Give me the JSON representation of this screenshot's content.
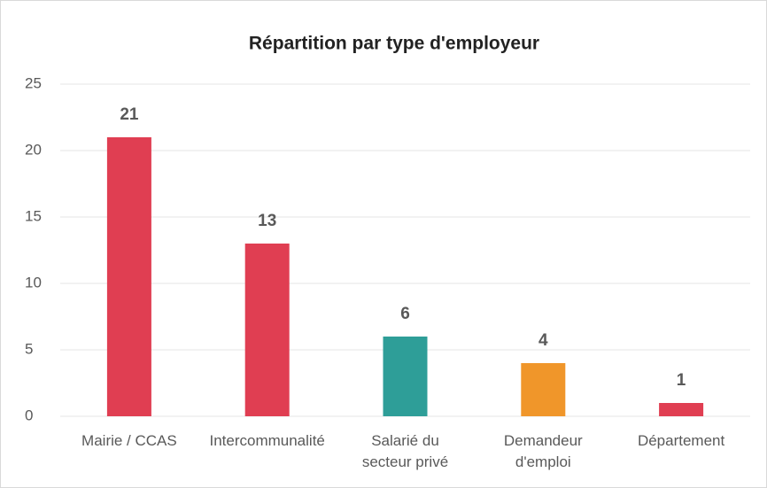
{
  "chart_data": {
    "type": "bar",
    "title": "Répartition par type d'employeur",
    "categories": [
      "Mairie / CCAS",
      "Intercommunalité",
      "Salarié du secteur privé",
      "Demandeur d'emploi",
      "Département"
    ],
    "values": [
      21,
      13,
      6,
      4,
      1
    ],
    "colors": [
      "#e03e52",
      "#e03e52",
      "#2e9e98",
      "#f0962a",
      "#e03e52"
    ],
    "ylim": [
      0,
      25
    ],
    "yticks": [
      0,
      5,
      10,
      15,
      20,
      25
    ],
    "grid": true
  }
}
